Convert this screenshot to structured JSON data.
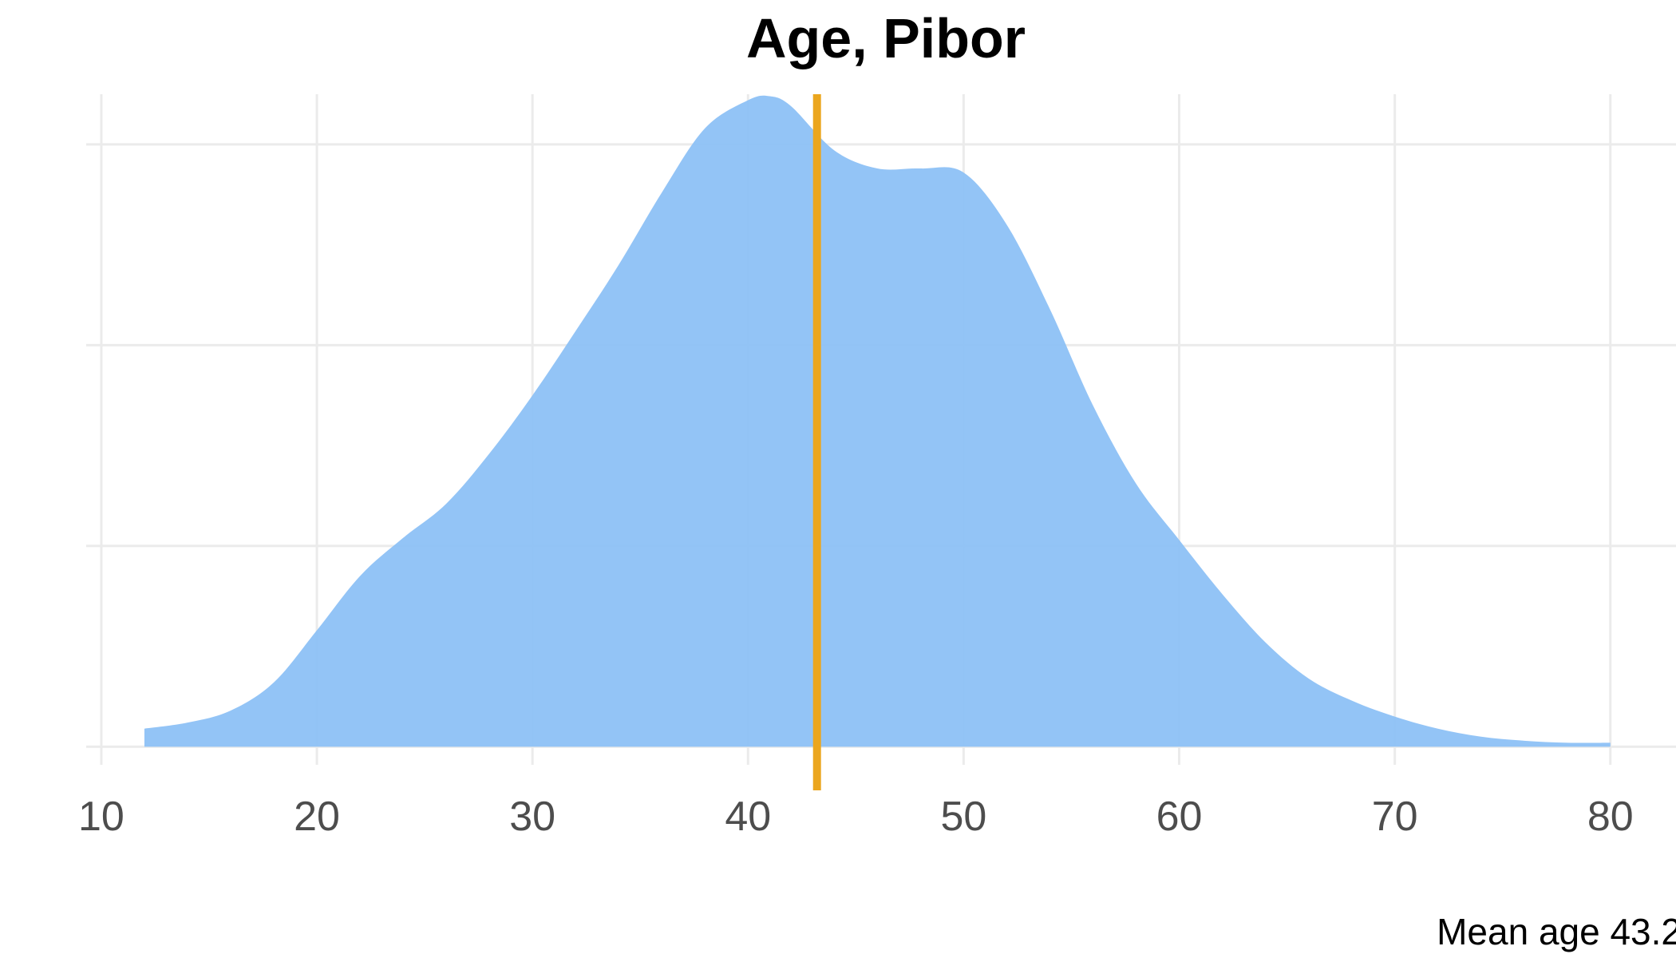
{
  "chart_data": {
    "type": "area",
    "title": "Age, Pibor",
    "caption": "Mean age 43.2",
    "xlabel": "",
    "ylabel": "",
    "xlim": [
      9.3,
      83.6
    ],
    "ylim": [
      -0.0009,
      0.0325
    ],
    "x_ticks": [
      10,
      20,
      30,
      40,
      50,
      60,
      70,
      80
    ],
    "x_tick_labels": [
      "10",
      "20",
      "30",
      "40",
      "50",
      "60",
      "70",
      "80"
    ],
    "y_gridlines": [
      0.0,
      0.01,
      0.02,
      0.03
    ],
    "grid": true,
    "legend": "none",
    "mean_line": 43.2,
    "series": [
      {
        "x": [
          12,
          14,
          16,
          18,
          20,
          22,
          24,
          26,
          28,
          30,
          32,
          34,
          36,
          38,
          40,
          41,
          42,
          44,
          46,
          48,
          50,
          52,
          54,
          56,
          58,
          60,
          62,
          64,
          66,
          68,
          70,
          72,
          74,
          76,
          78,
          80
        ],
        "y": [
          0.0009,
          0.0012,
          0.0018,
          0.0032,
          0.0058,
          0.0085,
          0.0104,
          0.0121,
          0.0146,
          0.0175,
          0.0207,
          0.024,
          0.0276,
          0.0308,
          0.0322,
          0.0324,
          0.0319,
          0.0297,
          0.0288,
          0.0288,
          0.0286,
          0.026,
          0.0218,
          0.017,
          0.0131,
          0.0103,
          0.0076,
          0.0052,
          0.0034,
          0.0023,
          0.0015,
          0.0009,
          0.0005,
          0.0003,
          0.0002,
          0.0002
        ]
      }
    ],
    "colors": {
      "fill": "#8dc1f5",
      "mean_line": "#eba61e",
      "grid": "#ebebeb",
      "tick_text": "#4d4d4d",
      "title": "#000000"
    }
  }
}
